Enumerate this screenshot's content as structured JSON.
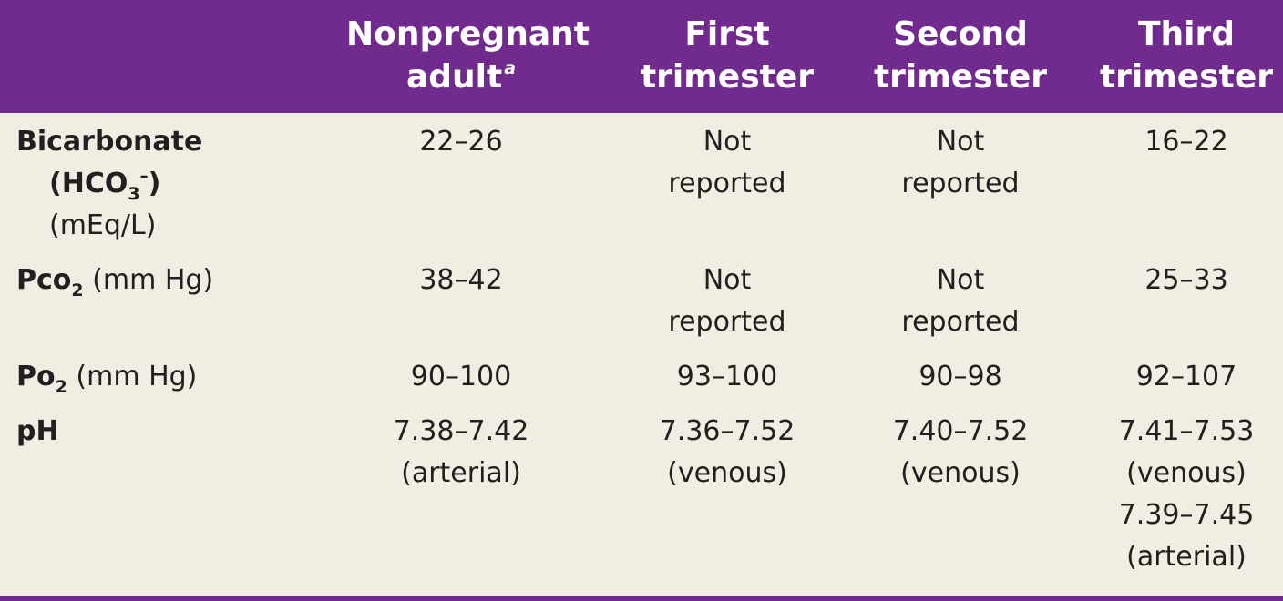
{
  "table": {
    "header": {
      "col1": {
        "line1": "Nonpregnant",
        "line2": "adult",
        "footnote": "a"
      },
      "col2": {
        "line1": "First",
        "line2": "trimester"
      },
      "col3": {
        "line1": "Second",
        "line2": "trimester"
      },
      "col4": {
        "line1": "Third",
        "line2": "trimester"
      }
    },
    "rows": {
      "bicarbonate": {
        "label_line1": "Bicarbonate",
        "label_hco": "(HCO",
        "label_sub": "3",
        "label_sup": "–",
        "label_close": ")",
        "label_unit": "(mEq/L)",
        "nonpregnant": "22–26",
        "first": [
          "Not",
          "reported"
        ],
        "second": [
          "Not",
          "reported"
        ],
        "third": "16–22"
      },
      "pco2": {
        "label_main": "Pco",
        "label_sub": "2",
        "label_unit": "(mm Hg)",
        "nonpregnant": "38–42",
        "first": [
          "Not",
          "reported"
        ],
        "second": [
          "Not",
          "reported"
        ],
        "third": "25–33"
      },
      "po2": {
        "label_main": "Po",
        "label_sub": "2",
        "label_unit": "(mm Hg)",
        "nonpregnant": "90–100",
        "first": "93–100",
        "second": "90–98",
        "third": "92–107"
      },
      "ph": {
        "label": "pH",
        "nonpregnant": [
          "7.38–7.42",
          "(arterial)"
        ],
        "first": [
          "7.36–7.52",
          "(venous)"
        ],
        "second": [
          "7.40–7.52",
          "(venous)"
        ],
        "third": [
          "7.41–7.53",
          "(venous)",
          "7.39–7.45",
          "(arterial)"
        ]
      }
    }
  },
  "colors": {
    "header_bg": "#712b8e",
    "header_text": "#ffffff",
    "body_bg": "#f1ede2",
    "body_text": "#231f20"
  }
}
